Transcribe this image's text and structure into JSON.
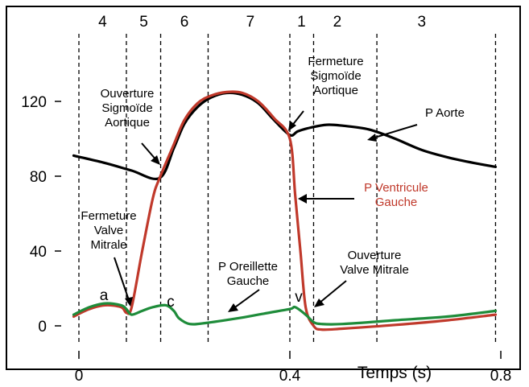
{
  "chart_data": {
    "type": "line",
    "xlabel": "Temps (s)",
    "ylabel": "",
    "xlim": [
      0,
      0.8
    ],
    "ylim": [
      0,
      140
    ],
    "x_ticks": [
      0,
      0.4,
      0.8
    ],
    "x_tick_labels": [
      "0",
      "0.4",
      "0.8"
    ],
    "y_ticks": [
      0,
      40,
      80,
      120
    ],
    "y_tick_labels": [
      "0",
      "40",
      "80",
      "120"
    ],
    "grid": false,
    "phase_boundaries": [
      0.0,
      0.09,
      0.155,
      0.245,
      0.4,
      0.445,
      0.565,
      0.79
    ],
    "phases": [
      {
        "label": "4",
        "x": 0.045
      },
      {
        "label": "5",
        "x": 0.123
      },
      {
        "label": "6",
        "x": 0.2
      },
      {
        "label": "7",
        "x": 0.325
      },
      {
        "label": "1",
        "x": 0.422
      },
      {
        "label": "2",
        "x": 0.49
      },
      {
        "label": "3",
        "x": 0.65
      }
    ],
    "series": [
      {
        "name": "P Aorte",
        "color": "#000000",
        "points": [
          [
            -0.01,
            91
          ],
          [
            0.05,
            87
          ],
          [
            0.1,
            83
          ],
          [
            0.153,
            79
          ],
          [
            0.18,
            95
          ],
          [
            0.2,
            108
          ],
          [
            0.225,
            117
          ],
          [
            0.25,
            122
          ],
          [
            0.28,
            124.5
          ],
          [
            0.31,
            123.5
          ],
          [
            0.34,
            119
          ],
          [
            0.37,
            110
          ],
          [
            0.4,
            102
          ],
          [
            0.415,
            104
          ],
          [
            0.44,
            106
          ],
          [
            0.47,
            107.5
          ],
          [
            0.5,
            107
          ],
          [
            0.55,
            105
          ],
          [
            0.6,
            100
          ],
          [
            0.65,
            94
          ],
          [
            0.7,
            90
          ],
          [
            0.75,
            87
          ],
          [
            0.79,
            85
          ]
        ]
      },
      {
        "name": "P Ventricule Gauche",
        "color": "#c0392b",
        "points": [
          [
            -0.01,
            5
          ],
          [
            0.02,
            9
          ],
          [
            0.05,
            11
          ],
          [
            0.08,
            10
          ],
          [
            0.09,
            7
          ],
          [
            0.1,
            10
          ],
          [
            0.12,
            40
          ],
          [
            0.14,
            68
          ],
          [
            0.153,
            79
          ],
          [
            0.18,
            97
          ],
          [
            0.2,
            110
          ],
          [
            0.225,
            119
          ],
          [
            0.25,
            123
          ],
          [
            0.28,
            125
          ],
          [
            0.31,
            124.5
          ],
          [
            0.34,
            120
          ],
          [
            0.37,
            111
          ],
          [
            0.4,
            100
          ],
          [
            0.41,
            70
          ],
          [
            0.42,
            40
          ],
          [
            0.43,
            10
          ],
          [
            0.445,
            0
          ],
          [
            0.46,
            -2
          ],
          [
            0.5,
            -1.5
          ],
          [
            0.6,
            0.5
          ],
          [
            0.7,
            3
          ],
          [
            0.79,
            6
          ]
        ]
      },
      {
        "name": "P Oreillette Gauche",
        "color": "#1e8c3a",
        "points": [
          [
            -0.01,
            6
          ],
          [
            0.02,
            10
          ],
          [
            0.05,
            12
          ],
          [
            0.08,
            11
          ],
          [
            0.09,
            9
          ],
          [
            0.1,
            6
          ],
          [
            0.12,
            8
          ],
          [
            0.14,
            10
          ],
          [
            0.165,
            11
          ],
          [
            0.18,
            8
          ],
          [
            0.19,
            4
          ],
          [
            0.21,
            1
          ],
          [
            0.24,
            1.5
          ],
          [
            0.3,
            4
          ],
          [
            0.35,
            6.5
          ],
          [
            0.4,
            9
          ],
          [
            0.41,
            10
          ],
          [
            0.43,
            6
          ],
          [
            0.445,
            2
          ],
          [
            0.46,
            1
          ],
          [
            0.5,
            1
          ],
          [
            0.6,
            3
          ],
          [
            0.7,
            5
          ],
          [
            0.79,
            8
          ]
        ]
      }
    ],
    "annotations": {
      "sigmoide_open": [
        "Ouverture",
        "Sigmoïde",
        "Aortique"
      ],
      "sigmoide_close": [
        "Fermeture",
        "Sigmoïde",
        "Aortique"
      ],
      "aorte": "P Aorte",
      "ventricule": [
        "P Ventricule",
        "Gauche"
      ],
      "mitrale_close": [
        "Fermeture",
        "Valve",
        "Mitrale"
      ],
      "oreillette": [
        "P Oreillette",
        "Gauche"
      ],
      "mitrale_open": [
        "Ouverture",
        "Valve Mitrale"
      ],
      "wave_a": "a",
      "wave_c": "c",
      "wave_v": "v"
    }
  }
}
